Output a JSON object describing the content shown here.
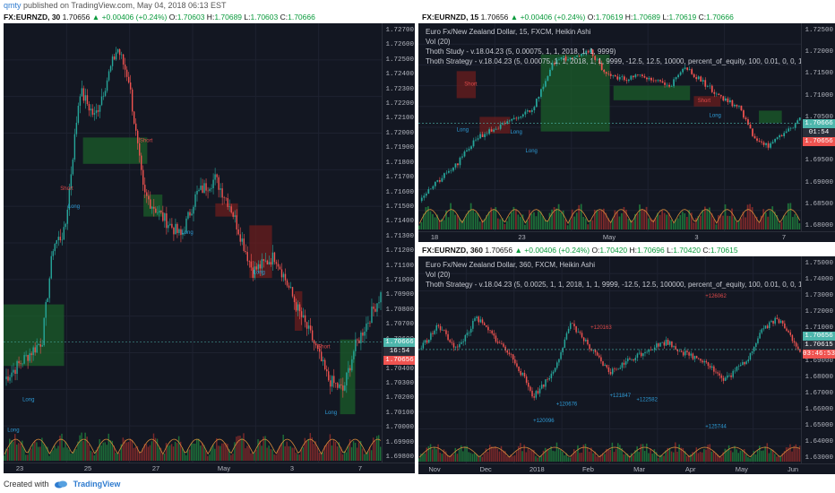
{
  "top_bar": {
    "author": "qmty",
    "text": " published on TradingView.com, May 04, 2018 06:13 EST"
  },
  "bottom_bar": {
    "created_with": "Created with",
    "brand": "TradingView"
  },
  "colors": {
    "bg": "#131722",
    "up": "#26a69a",
    "down": "#ef5350",
    "up_volume": "#1f7a3c",
    "down_volume": "#8a2b2b",
    "ma_line": "#d68a3a",
    "green_zone": "#1b5e2a",
    "red_zone": "#6b1e1e",
    "long_label": "#2e9bd6",
    "short_label": "#e04a4a"
  },
  "panes": {
    "left": {
      "symbol": "FX:EURNZD, 30",
      "last": "1.70656",
      "change": "+0.00406 (+0.24%)",
      "o": "1.70603",
      "h": "1.70689",
      "l": "1.70603",
      "c": "1.70666",
      "y_ticks": [
        "1.72700",
        "1.72600",
        "1.72500",
        "1.72400",
        "1.72300",
        "1.72200",
        "1.72100",
        "1.72000",
        "1.71900",
        "1.71800",
        "1.71700",
        "1.71600",
        "1.71500",
        "1.71400",
        "1.71300",
        "1.71200",
        "1.71100",
        "1.71000",
        "1.70900",
        "1.70800",
        "1.70700",
        "1.70600",
        "1.70500",
        "1.70400",
        "1.70300",
        "1.70200",
        "1.70100",
        "1.70000",
        "1.69900",
        "1.69800"
      ],
      "price_boxes": [
        "1.70666",
        "16:54",
        "1.70656"
      ],
      "x_ticks": [
        "23",
        "25",
        "27",
        "May",
        "3",
        "7"
      ]
    },
    "top_right": {
      "symbol": "FX:EURNZD, 15",
      "last": "1.70656",
      "change": "+0.00406 (+0.24%)",
      "o": "1.70619",
      "h": "1.70689",
      "l": "1.70619",
      "c": "1.70666",
      "legend": [
        "Euro Fx/New Zealand Dollar, 15, FXCM, Heikin Ashi",
        "Vol (20)",
        "Thoth Study - v.18.04.23 (5, 0.00075, 1, 1, 2018, 1, 1, 9999)",
        "Thoth Strategy - v.18.04.23 (5, 0.00075, 1, 1, 2018, 1, 1, 9999, -12.5, 12.5, 10000, percent_of_equity, 100, 0.01, 0, 0, 1)"
      ],
      "y_ticks": [
        "1.72500",
        "1.72000",
        "1.71500",
        "1.71000",
        "1.70500",
        "1.70000",
        "1.69500",
        "1.69000",
        "1.68500",
        "1.68000"
      ],
      "price_boxes": [
        "1.70666",
        "01:54",
        "1.70656"
      ],
      "x_ticks": [
        "18",
        "23",
        "May",
        "3",
        "7"
      ]
    },
    "bottom_right": {
      "symbol": "FX:EURNZD, 360",
      "last": "1.70656",
      "change": "+0.00406 (+0.24%)",
      "o": "1.70420",
      "h": "1.70696",
      "l": "1.70420",
      "c": "1.70615",
      "legend": [
        "Euro Fx/New Zealand Dollar, 360, FXCM, Heikin Ashi",
        "Vol (20)",
        "Thoth Strategy - v.18.04.23 (5, 0.0025, 1, 1, 2018, 1, 1, 9999, -12.5, 12.5, 100000, percent_of_equity, 100, 0.01, 0, 0, 1)"
      ],
      "y_ticks": [
        "1.75000",
        "1.74000",
        "1.73000",
        "1.72000",
        "1.71000",
        "1.70000",
        "1.69000",
        "1.68000",
        "1.67000",
        "1.66000",
        "1.65000",
        "1.64000",
        "1.63000"
      ],
      "price_boxes": [
        "1.70656",
        "1.70615",
        "03:46:53"
      ],
      "x_ticks": [
        "Nov",
        "Dec",
        "2018",
        "Feb",
        "Mar",
        "Apr",
        "May",
        "Jun"
      ]
    }
  },
  "trade_labels": {
    "long": "Long",
    "short": "Short"
  },
  "bottom_right_annotations": [
    "+120096",
    "+120676",
    "+121847",
    "+122582",
    "+125744",
    "+120163",
    "+126062"
  ]
}
